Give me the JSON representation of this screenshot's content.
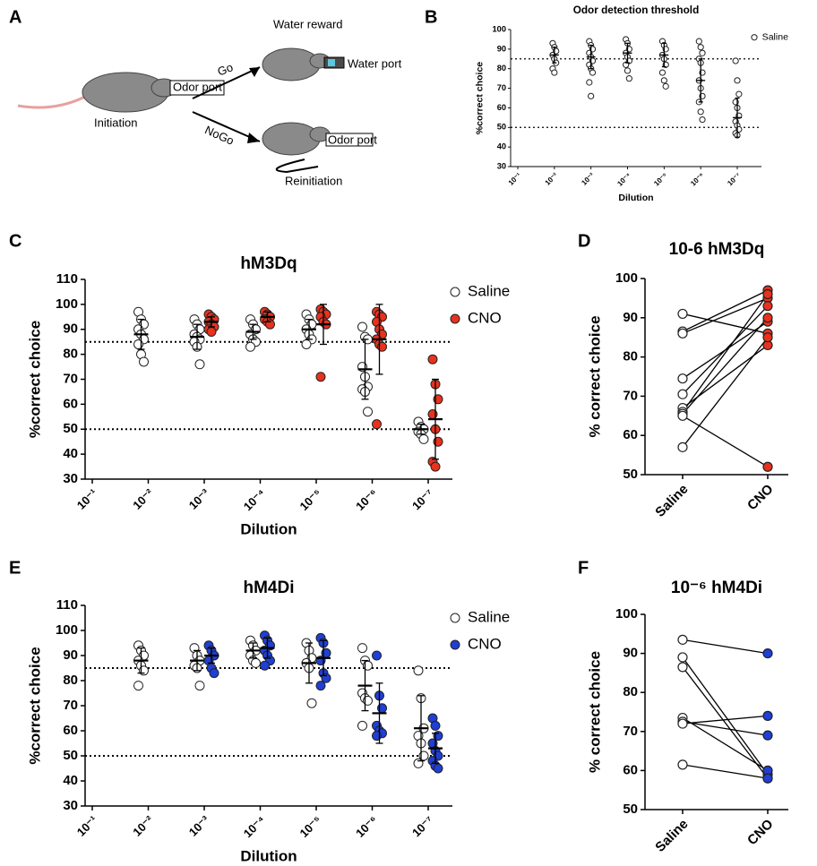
{
  "panels": [
    "A",
    "B",
    "C",
    "D",
    "E",
    "F"
  ],
  "diagram": {
    "initiation": "Initiation",
    "odor_port_1": "Odor port",
    "go": "Go",
    "nogo": "NoGo",
    "water_reward": "Water reward",
    "water_port": "Water port",
    "odor_port_2": "Odor port",
    "reinitiation": "Reinitiation"
  },
  "chart_data": [
    {
      "type": "dot",
      "title": "Odor detection threshold",
      "x_label": "Dilution",
      "y_label": "%correct choice",
      "categories": [
        "10⁻¹",
        "10⁻²",
        "10⁻³",
        "10⁻⁴",
        "10⁻⁵",
        "10⁻⁶",
        "10⁻⁷"
      ],
      "ylim": [
        30,
        100
      ],
      "yticks": [
        30,
        40,
        50,
        60,
        70,
        80,
        90,
        100
      ],
      "ref_lines": [
        85,
        50
      ],
      "legend": "top-right",
      "series": [
        {
          "name": "Saline",
          "color": "#ffffff",
          "values": [
            [],
            [
              93,
              91,
              89,
              87,
              85,
              83,
              80,
              78
            ],
            [
              94,
              92,
              90,
              88,
              86,
              84,
              82,
              80,
              78,
              73,
              66
            ],
            [
              95,
              93,
              90,
              88,
              86,
              84,
              82,
              79,
              75
            ],
            [
              94,
              92,
              90,
              87,
              85,
              82,
              78,
              74,
              71
            ],
            [
              94,
              91,
              88,
              85,
              83,
              78,
              74,
              70,
              66,
              63,
              58,
              54
            ],
            [
              84,
              74,
              67,
              63,
              60,
              56,
              53,
              51,
              49,
              47,
              46
            ]
          ],
          "mean": [
            null,
            87,
            86,
            88,
            87,
            74,
            55
          ],
          "sd": [
            null,
            4,
            6,
            5,
            6,
            11,
            10
          ]
        }
      ]
    },
    {
      "type": "dot",
      "title": "hM3Dq",
      "x_label": "Dilution",
      "y_label": "%correct choice",
      "categories": [
        "10⁻¹",
        "10⁻²",
        "10⁻³",
        "10⁻⁴",
        "10⁻⁵",
        "10⁻⁶",
        "10⁻⁷"
      ],
      "ylim": [
        30,
        110
      ],
      "yticks": [
        30,
        40,
        50,
        60,
        70,
        80,
        90,
        100,
        110
      ],
      "ref_lines": [
        85,
        50
      ],
      "legend": "top-right",
      "series": [
        {
          "name": "Saline",
          "color": "#ffffff",
          "values": [
            [],
            [
              97,
              94,
              92,
              90,
              88,
              86,
              84,
              80,
              77
            ],
            [
              94,
              92,
              90,
              88,
              87,
              86,
              85,
              83,
              76
            ],
            [
              94,
              92,
              90,
              88,
              86,
              85,
              83
            ],
            [
              96,
              94,
              92,
              90,
              88,
              86,
              84
            ],
            [
              91,
              87,
              86,
              75,
              71,
              67,
              66,
              65,
              57
            ],
            [
              53,
              51,
              50,
              49,
              48,
              46
            ]
          ],
          "mean": [
            null,
            88,
            87,
            89,
            90,
            74,
            50
          ],
          "sd": [
            null,
            6,
            5,
            3,
            4,
            12,
            2
          ]
        },
        {
          "name": "CNO",
          "color": "#e8321e",
          "values": [
            [],
            [],
            [
              96,
              95,
              94,
              93,
              92,
              91,
              90,
              89
            ],
            [
              97,
              96,
              95,
              94,
              93,
              92
            ],
            [
              98,
              97,
              96,
              95,
              93,
              92,
              71
            ],
            [
              97,
              96,
              95,
              93,
              90,
              88,
              86,
              84,
              83,
              52
            ],
            [
              78,
              68,
              62,
              56,
              50,
              45,
              37,
              35
            ]
          ],
          "mean": [
            null,
            null,
            93,
            95,
            92,
            86,
            54
          ],
          "sd": [
            null,
            null,
            2,
            2,
            8,
            14,
            16
          ]
        }
      ]
    },
    {
      "type": "paired",
      "title": "10-6 hM3Dq",
      "y_label": "% correct choice",
      "categories": [
        "Saline",
        "CNO"
      ],
      "colors": [
        "#ffffff",
        "#e8321e"
      ],
      "ylim": [
        50,
        100
      ],
      "yticks": [
        50,
        60,
        70,
        80,
        90,
        100
      ],
      "values": [
        [
          91,
          86.5,
          86,
          74.5,
          70.5,
          67,
          66,
          65.5,
          65,
          57
        ],
        [
          86,
          97,
          95,
          89,
          93,
          83,
          96,
          90,
          52,
          85
        ]
      ]
    },
    {
      "type": "dot",
      "title": "hM4Di",
      "x_label": "Dilution",
      "y_label": "%correct choice",
      "categories": [
        "10⁻¹",
        "10⁻²",
        "10⁻³",
        "10⁻⁴",
        "10⁻⁵",
        "10⁻⁶",
        "10⁻⁷"
      ],
      "ylim": [
        30,
        110
      ],
      "yticks": [
        30,
        40,
        50,
        60,
        70,
        80,
        90,
        100,
        110
      ],
      "ref_lines": [
        85,
        50
      ],
      "legend": "top-right",
      "series": [
        {
          "name": "Saline",
          "color": "#ffffff",
          "values": [
            [],
            [
              94,
              92,
              90,
              88,
              86,
              84,
              78
            ],
            [
              93,
              90,
              88,
              86,
              85,
              78
            ],
            [
              96,
              94,
              92,
              90,
              88,
              87
            ],
            [
              95,
              92,
              89,
              87,
              85,
              71
            ],
            [
              93,
              88,
              86,
              75,
              73,
              72,
              62
            ],
            [
              84,
              73,
              61,
              58,
              55,
              50,
              47
            ]
          ],
          "mean": [
            null,
            88,
            88,
            92,
            87,
            78,
            61
          ],
          "sd": [
            null,
            5,
            4,
            3,
            8,
            10,
            13
          ]
        },
        {
          "name": "CNO",
          "color": "#1f3fd6",
          "values": [
            [],
            [],
            [
              94,
              92,
              90,
              88,
              85,
              83
            ],
            [
              98,
              96,
              94,
              92,
              90,
              88,
              86
            ],
            [
              97,
              95,
              91,
              88,
              83,
              81,
              78
            ],
            [
              90,
              74,
              69,
              62,
              60,
              59,
              58
            ],
            [
              65,
              62,
              58,
              55,
              52,
              50,
              48,
              46,
              45
            ]
          ],
          "mean": [
            null,
            null,
            90,
            93,
            89,
            67,
            53
          ],
          "sd": [
            null,
            null,
            3,
            4,
            7,
            12,
            6
          ]
        }
      ]
    },
    {
      "type": "paired",
      "title": "10⁻⁶ hM4Di",
      "y_label": "% correct choice",
      "categories": [
        "Saline",
        "CNO"
      ],
      "colors": [
        "#ffffff",
        "#1f3fd6"
      ],
      "ylim": [
        50,
        100
      ],
      "yticks": [
        50,
        60,
        70,
        80,
        90,
        100
      ],
      "values": [
        [
          93.5,
          89,
          86.5,
          73.5,
          72.5,
          72,
          61.5
        ],
        [
          90,
          59,
          58,
          60,
          69,
          74,
          58
        ]
      ]
    }
  ]
}
